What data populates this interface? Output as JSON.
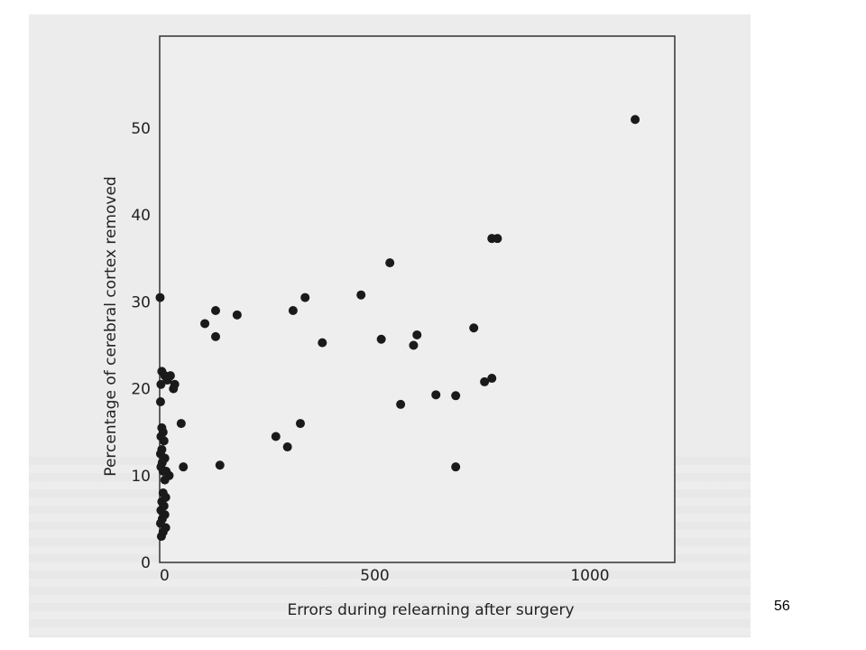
{
  "chart_data": {
    "type": "scatter",
    "title": "",
    "xlabel": "Errors during relearning after surgery",
    "ylabel": "Percentage of cerebral cortex removed",
    "xlim": [
      0,
      1200
    ],
    "ylim": [
      0,
      60
    ],
    "xticks": [
      0,
      500,
      1000
    ],
    "yticks": [
      0,
      10,
      20,
      30,
      40,
      50
    ],
    "grid": false,
    "legend": "none",
    "marker_color": "#1a1a1a",
    "points": [
      {
        "x": 1,
        "y": 30.5
      },
      {
        "x": 5,
        "y": 22
      },
      {
        "x": 12,
        "y": 21.5
      },
      {
        "x": 25,
        "y": 21.5
      },
      {
        "x": 3,
        "y": 20.5
      },
      {
        "x": 18,
        "y": 21
      },
      {
        "x": 35,
        "y": 20.5
      },
      {
        "x": 32,
        "y": 20
      },
      {
        "x": 2,
        "y": 18.5
      },
      {
        "x": 5,
        "y": 15.5
      },
      {
        "x": 8,
        "y": 15
      },
      {
        "x": 3,
        "y": 14.5
      },
      {
        "x": 10,
        "y": 14
      },
      {
        "x": 5,
        "y": 13
      },
      {
        "x": 2,
        "y": 12.5
      },
      {
        "x": 12,
        "y": 12
      },
      {
        "x": 6,
        "y": 11.5
      },
      {
        "x": 3,
        "y": 11
      },
      {
        "x": 8,
        "y": 10.5
      },
      {
        "x": 15,
        "y": 10.5
      },
      {
        "x": 22,
        "y": 10
      },
      {
        "x": 12,
        "y": 9.5
      },
      {
        "x": 8,
        "y": 8
      },
      {
        "x": 14,
        "y": 7.5
      },
      {
        "x": 5,
        "y": 7
      },
      {
        "x": 10,
        "y": 6.5
      },
      {
        "x": 3,
        "y": 6
      },
      {
        "x": 12,
        "y": 5.5
      },
      {
        "x": 6,
        "y": 5
      },
      {
        "x": 2,
        "y": 4.5
      },
      {
        "x": 14,
        "y": 4
      },
      {
        "x": 8,
        "y": 3.5
      },
      {
        "x": 4,
        "y": 3
      },
      {
        "x": 50,
        "y": 16
      },
      {
        "x": 55,
        "y": 11
      },
      {
        "x": 105,
        "y": 27.5
      },
      {
        "x": 130,
        "y": 29
      },
      {
        "x": 130,
        "y": 26
      },
      {
        "x": 140,
        "y": 11.2
      },
      {
        "x": 180,
        "y": 28.5
      },
      {
        "x": 270,
        "y": 14.5
      },
      {
        "x": 297,
        "y": 13.3
      },
      {
        "x": 310,
        "y": 29
      },
      {
        "x": 327,
        "y": 16
      },
      {
        "x": 338,
        "y": 30.5
      },
      {
        "x": 378,
        "y": 25.3
      },
      {
        "x": 468,
        "y": 30.8
      },
      {
        "x": 515,
        "y": 25.7
      },
      {
        "x": 535,
        "y": 34.5
      },
      {
        "x": 560,
        "y": 18.2
      },
      {
        "x": 590,
        "y": 25
      },
      {
        "x": 598,
        "y": 26.2
      },
      {
        "x": 642,
        "y": 19.3
      },
      {
        "x": 688,
        "y": 19.2
      },
      {
        "x": 688,
        "y": 11
      },
      {
        "x": 730,
        "y": 27
      },
      {
        "x": 755,
        "y": 20.8
      },
      {
        "x": 772,
        "y": 21.2
      },
      {
        "x": 772,
        "y": 37.3
      },
      {
        "x": 785,
        "y": 37.3
      },
      {
        "x": 1105,
        "y": 51
      }
    ]
  },
  "slide": {
    "number": "56"
  }
}
